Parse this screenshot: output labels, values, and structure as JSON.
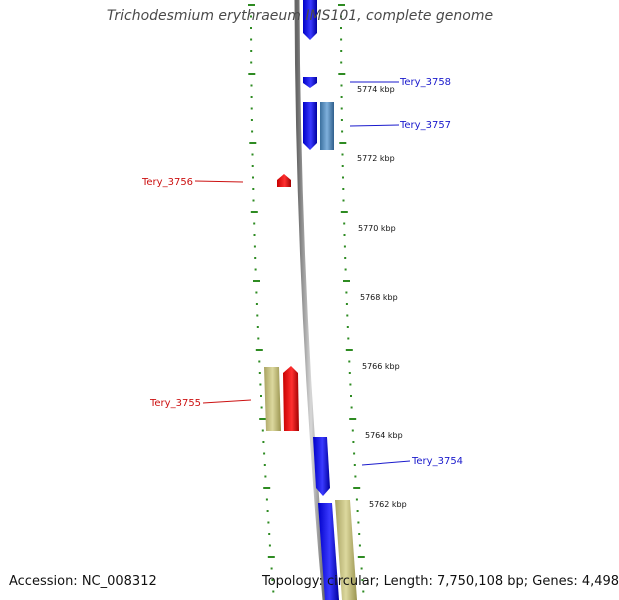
{
  "title": "Trichodesmium erythraeum IMS101, complete genome",
  "footer": {
    "accession": "Accession: NC_008312",
    "topology": "Topology: circular; Length: 7,750,108 bp; Genes: 4,498"
  },
  "colors": {
    "forward_cds": "#1a1aff",
    "reverse_cds": "#ee1111",
    "feature_blue": "#4682b4",
    "feature_tan": "#bdb76b",
    "tick_green": "#2e8b22",
    "backbone": "#999999",
    "forward_label": "#1a1acc",
    "reverse_label": "#cc1111"
  },
  "kbp_labels": [
    "5774 kbp",
    "5772 kbp",
    "5770 kbp",
    "5768 kbp",
    "5766 kbp",
    "5764 kbp",
    "5762 kbp"
  ],
  "gene_labels": [
    {
      "text": "Tery_3758",
      "strand": "forward"
    },
    {
      "text": "Tery_3757",
      "strand": "forward"
    },
    {
      "text": "Tery_3756",
      "strand": "reverse"
    },
    {
      "text": "Tery_3755",
      "strand": "reverse"
    },
    {
      "text": "Tery_3754",
      "strand": "forward"
    }
  ]
}
